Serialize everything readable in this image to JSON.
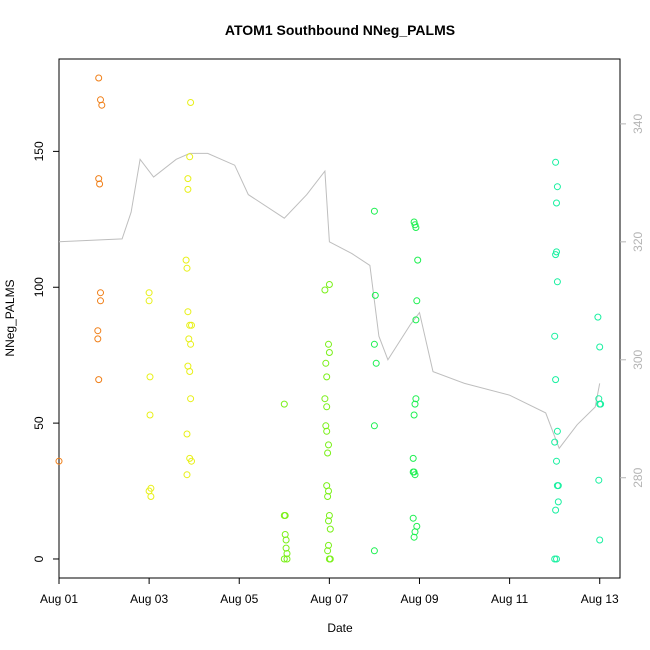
{
  "chart_data": {
    "type": "scatter",
    "title": "ATOM1 Southbound NNeg_PALMS",
    "xlabel": "Date",
    "ylabel": "NNeg_PALMS",
    "xlim": [
      0,
      12.45
    ],
    "ylim": [
      -7,
      184
    ],
    "y2lim": [
      263,
      351
    ],
    "x_ticks": [
      {
        "value": 0,
        "label": "Aug 01"
      },
      {
        "value": 2,
        "label": "Aug 03"
      },
      {
        "value": 4,
        "label": "Aug 05"
      },
      {
        "value": 6,
        "label": "Aug 07"
      },
      {
        "value": 8,
        "label": "Aug 09"
      },
      {
        "value": 10,
        "label": "Aug 11"
      },
      {
        "value": 12,
        "label": "Aug 13"
      }
    ],
    "y_ticks": [
      0,
      50,
      100,
      150
    ],
    "y2_ticks": [
      280,
      300,
      320,
      340
    ],
    "grid": false,
    "series": [
      {
        "color": "#f07f18",
        "points": [
          [
            0,
            36
          ],
          [
            0.88,
            177
          ],
          [
            0.92,
            169
          ],
          [
            0.95,
            167
          ],
          [
            0.88,
            140
          ],
          [
            0.9,
            138
          ],
          [
            0.92,
            98
          ],
          [
            0.92,
            95
          ],
          [
            0.86,
            84
          ],
          [
            0.86,
            81
          ],
          [
            0.88,
            66
          ]
        ]
      },
      {
        "color": "#e8f018",
        "points": [
          [
            2.0,
            98
          ],
          [
            2.0,
            95
          ],
          [
            2.02,
            67
          ],
          [
            2.02,
            53
          ],
          [
            2.04,
            26
          ],
          [
            2.0,
            25
          ],
          [
            2.04,
            23
          ],
          [
            2.92,
            168
          ],
          [
            2.9,
            148
          ],
          [
            2.86,
            140
          ],
          [
            2.86,
            136
          ],
          [
            2.82,
            110
          ],
          [
            2.84,
            107
          ],
          [
            2.86,
            91
          ],
          [
            2.9,
            86
          ],
          [
            2.94,
            86
          ],
          [
            2.88,
            81
          ],
          [
            2.92,
            79
          ],
          [
            2.86,
            71
          ],
          [
            2.9,
            69
          ],
          [
            2.92,
            59
          ],
          [
            2.84,
            46
          ],
          [
            2.9,
            37
          ],
          [
            2.94,
            36
          ],
          [
            2.84,
            31
          ]
        ]
      },
      {
        "color": "#7af018",
        "points": [
          [
            5.0,
            57
          ],
          [
            5.0,
            16
          ],
          [
            5.02,
            16
          ],
          [
            5.02,
            9
          ],
          [
            5.04,
            7
          ],
          [
            5.04,
            4
          ],
          [
            5.06,
            2
          ],
          [
            5.0,
            0
          ],
          [
            5.06,
            0
          ],
          [
            5.9,
            99
          ],
          [
            6.0,
            101
          ],
          [
            5.98,
            79
          ],
          [
            6.0,
            76
          ],
          [
            5.92,
            72
          ],
          [
            5.94,
            67
          ],
          [
            5.9,
            59
          ],
          [
            5.94,
            56
          ],
          [
            5.92,
            49
          ],
          [
            5.94,
            47
          ],
          [
            5.98,
            42
          ],
          [
            5.96,
            39
          ],
          [
            5.94,
            27
          ],
          [
            5.98,
            25
          ],
          [
            5.96,
            23
          ],
          [
            6.0,
            16
          ],
          [
            5.98,
            14
          ],
          [
            6.02,
            11
          ],
          [
            5.98,
            5
          ],
          [
            5.96,
            3
          ],
          [
            6.0,
            0
          ],
          [
            6.02,
            0
          ]
        ]
      },
      {
        "color": "#1cf050",
        "points": [
          [
            7.0,
            128
          ],
          [
            7.02,
            97
          ],
          [
            7.0,
            79
          ],
          [
            7.04,
            72
          ],
          [
            7.0,
            49
          ],
          [
            7.0,
            3
          ],
          [
            7.88,
            124
          ],
          [
            7.9,
            123
          ],
          [
            7.92,
            122
          ],
          [
            7.96,
            110
          ],
          [
            7.94,
            95
          ],
          [
            7.92,
            88
          ],
          [
            7.92,
            59
          ],
          [
            7.9,
            57
          ],
          [
            7.88,
            53
          ],
          [
            7.86,
            37
          ],
          [
            7.86,
            32
          ],
          [
            7.88,
            32
          ],
          [
            7.9,
            31
          ],
          [
            7.86,
            15
          ],
          [
            7.94,
            12
          ],
          [
            7.9,
            10
          ],
          [
            7.88,
            8
          ]
        ]
      },
      {
        "color": "#18f0a0",
        "points": [
          [
            11.02,
            146
          ],
          [
            11.06,
            137
          ],
          [
            11.04,
            131
          ],
          [
            11.04,
            113
          ],
          [
            11.02,
            112
          ],
          [
            11.06,
            102
          ],
          [
            11.0,
            82
          ],
          [
            11.02,
            66
          ],
          [
            11.06,
            47
          ],
          [
            11.0,
            43
          ],
          [
            11.04,
            36
          ],
          [
            11.06,
            27
          ],
          [
            11.08,
            27
          ],
          [
            11.08,
            21
          ],
          [
            11.02,
            18
          ],
          [
            11.0,
            0
          ],
          [
            11.04,
            0
          ],
          [
            11.96,
            89
          ],
          [
            12.0,
            78
          ],
          [
            11.98,
            59
          ],
          [
            12.02,
            57
          ],
          [
            12.0,
            57
          ],
          [
            11.98,
            29
          ],
          [
            12.0,
            7
          ]
        ]
      }
    ],
    "secondary_line": {
      "color": "#bebebe",
      "points": [
        [
          0,
          320
        ],
        [
          1.4,
          320.5
        ],
        [
          1.6,
          325
        ],
        [
          1.8,
          334
        ],
        [
          2.1,
          331
        ],
        [
          2.6,
          334
        ],
        [
          2.9,
          335
        ],
        [
          3.3,
          335
        ],
        [
          3.9,
          333
        ],
        [
          4.2,
          328
        ],
        [
          5.0,
          324
        ],
        [
          5.5,
          328
        ],
        [
          5.9,
          332
        ],
        [
          6.0,
          320
        ],
        [
          6.5,
          318
        ],
        [
          6.9,
          316
        ],
        [
          7.1,
          304
        ],
        [
          7.3,
          300
        ],
        [
          7.8,
          306
        ],
        [
          8.0,
          308
        ],
        [
          8.3,
          298
        ],
        [
          9.0,
          296
        ],
        [
          10.0,
          294
        ],
        [
          10.8,
          291
        ],
        [
          11.1,
          285
        ],
        [
          11.5,
          289
        ],
        [
          11.9,
          292
        ],
        [
          12.0,
          296
        ]
      ]
    }
  }
}
